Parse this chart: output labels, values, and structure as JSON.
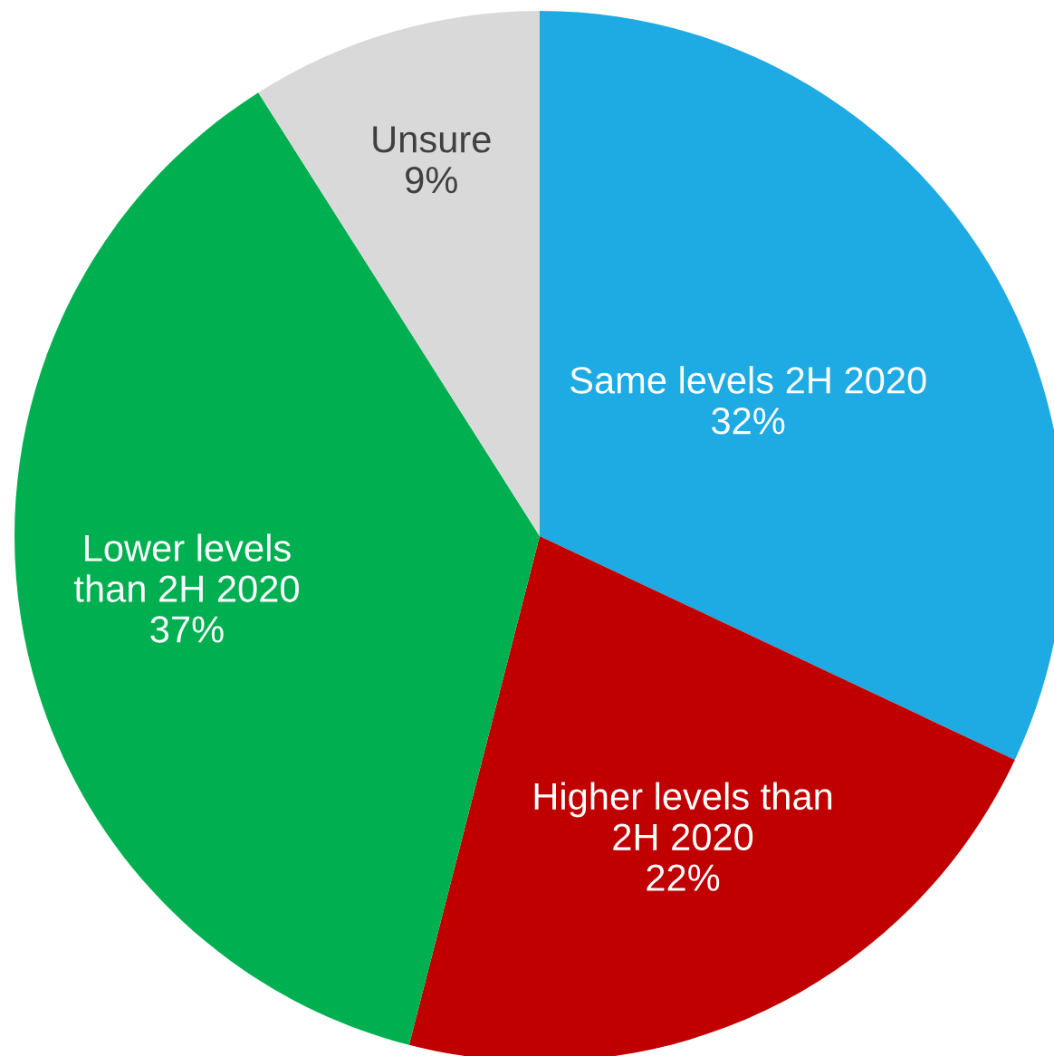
{
  "chart_data": {
    "type": "pie",
    "categories": [
      "Same levels 2H 2020",
      "Higher levels than\n2H 2020",
      "Lower levels\nthan 2H 2020",
      "Unsure"
    ],
    "values": [
      32,
      22,
      37,
      9
    ],
    "value_labels": [
      "32%",
      "22%",
      "37%",
      "9%"
    ],
    "colors": [
      "#1eaae2",
      "#c00000",
      "#00b050",
      "#d9d9d9"
    ],
    "legend": false
  }
}
